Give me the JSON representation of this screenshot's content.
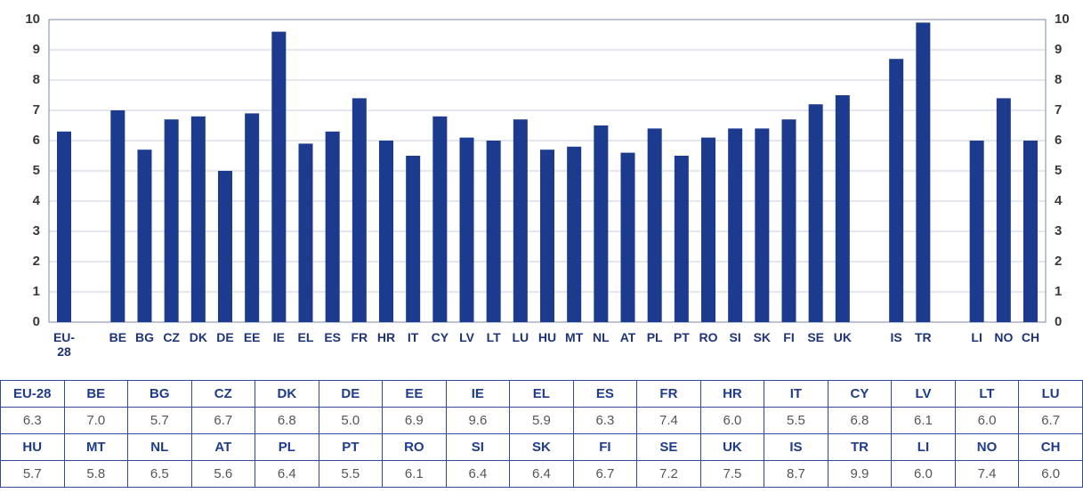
{
  "chart_data": {
    "type": "bar",
    "categories": [
      "EU-28",
      null,
      "BE",
      "BG",
      "CZ",
      "DK",
      "DE",
      "EE",
      "IE",
      "EL",
      "ES",
      "FR",
      "HR",
      "IT",
      "CY",
      "LV",
      "LT",
      "LU",
      "HU",
      "MT",
      "NL",
      "AT",
      "PL",
      "PT",
      "RO",
      "SI",
      "SK",
      "FI",
      "SE",
      "UK",
      null,
      "IS",
      "TR",
      null,
      "LI",
      "NO",
      "CH"
    ],
    "values": [
      6.3,
      null,
      7.0,
      5.7,
      6.7,
      6.8,
      5.0,
      6.9,
      9.6,
      5.9,
      6.3,
      7.4,
      6.0,
      5.5,
      6.8,
      6.1,
      6.0,
      6.7,
      5.7,
      5.8,
      6.5,
      5.6,
      6.4,
      5.5,
      6.1,
      6.4,
      6.4,
      6.7,
      7.2,
      7.5,
      null,
      8.7,
      9.9,
      null,
      6.0,
      7.4,
      6.0
    ],
    "color": "#1c3a8e",
    "ylim": [
      0,
      10
    ],
    "yticks": [
      0,
      1,
      2,
      3,
      4,
      5,
      6,
      7,
      8,
      9,
      10
    ],
    "y2lim": [
      0,
      10
    ],
    "y2ticks": [
      0,
      1,
      2,
      3,
      4,
      5,
      6,
      7,
      8,
      9,
      10
    ],
    "grid": true
  },
  "table": {
    "rows": [
      [
        "EU-28",
        "BE",
        "BG",
        "CZ",
        "DK",
        "DE",
        "EE",
        "IE",
        "EL",
        "ES",
        "FR",
        "HR",
        "IT",
        "CY",
        "LV",
        "LT",
        "LU"
      ],
      [
        "6.3",
        "7.0",
        "5.7",
        "6.7",
        "6.8",
        "5.0",
        "6.9",
        "9.6",
        "5.9",
        "6.3",
        "7.4",
        "6.0",
        "5.5",
        "6.8",
        "6.1",
        "6.0",
        "6.7"
      ],
      [
        "HU",
        "MT",
        "NL",
        "AT",
        "PL",
        "PT",
        "RO",
        "SI",
        "SK",
        "FI",
        "SE",
        "UK",
        "IS",
        "TR",
        "LI",
        "NO",
        "CH"
      ],
      [
        "5.7",
        "5.8",
        "6.5",
        "5.6",
        "6.4",
        "5.5",
        "6.1",
        "6.4",
        "6.4",
        "6.7",
        "7.2",
        "7.5",
        "8.7",
        "9.9",
        "6.0",
        "7.4",
        "6.0"
      ]
    ]
  }
}
